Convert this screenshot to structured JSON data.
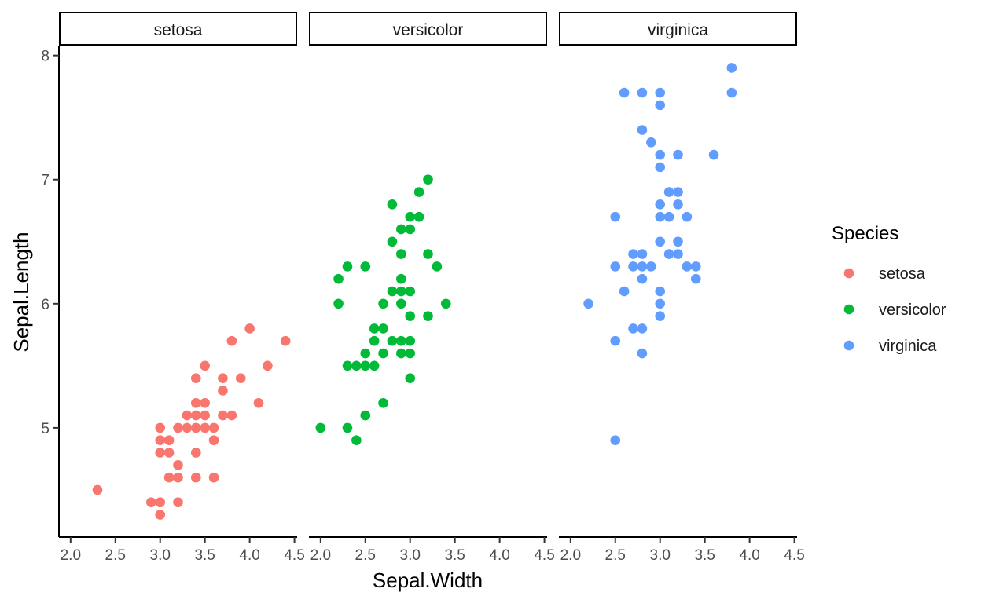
{
  "chart_data": {
    "type": "scatter",
    "facet_by": "Species",
    "facets": [
      "setosa",
      "versicolor",
      "virginica"
    ],
    "xlabel": "Sepal.Width",
    "ylabel": "Sepal.Length",
    "xlim": [
      1.87,
      4.53
    ],
    "ylim": [
      4.12,
      8.08
    ],
    "x_ticks": [
      2.0,
      2.5,
      3.0,
      3.5,
      4.0,
      4.5
    ],
    "x_tick_labels": [
      "2.0",
      "2.5",
      "3.0",
      "3.5",
      "4.0",
      "4.5"
    ],
    "y_ticks": [
      5,
      6,
      7,
      8
    ],
    "y_tick_labels": [
      "5",
      "6",
      "7",
      "8"
    ],
    "grid": false,
    "legend": {
      "title": "Species",
      "position": "right",
      "entries": [
        "setosa",
        "versicolor",
        "virginica"
      ]
    },
    "colors": {
      "setosa": "#F8766D",
      "versicolor": "#00BA38",
      "virginica": "#619CFF"
    },
    "series": [
      {
        "name": "setosa",
        "points": [
          [
            2.3,
            4.5
          ],
          [
            2.9,
            4.4
          ],
          [
            3.0,
            4.4
          ],
          [
            3.0,
            4.3
          ],
          [
            3.1,
            4.6
          ],
          [
            3.2,
            4.6
          ],
          [
            3.2,
            4.4
          ],
          [
            3.4,
            4.6
          ],
          [
            3.6,
            4.6
          ],
          [
            3.2,
            4.7
          ],
          [
            3.0,
            4.8
          ],
          [
            3.1,
            4.8
          ],
          [
            3.4,
            4.8
          ],
          [
            3.0,
            4.9
          ],
          [
            3.1,
            4.9
          ],
          [
            3.6,
            4.9
          ],
          [
            3.0,
            5.0
          ],
          [
            3.2,
            5.0
          ],
          [
            3.3,
            5.0
          ],
          [
            3.4,
            5.0
          ],
          [
            3.5,
            5.0
          ],
          [
            3.6,
            5.0
          ],
          [
            3.3,
            5.1
          ],
          [
            3.4,
            5.1
          ],
          [
            3.5,
            5.1
          ],
          [
            3.7,
            5.1
          ],
          [
            3.8,
            5.1
          ],
          [
            3.4,
            5.2
          ],
          [
            3.5,
            5.2
          ],
          [
            4.1,
            5.2
          ],
          [
            3.7,
            5.3
          ],
          [
            3.4,
            5.4
          ],
          [
            3.7,
            5.4
          ],
          [
            3.9,
            5.4
          ],
          [
            3.5,
            5.5
          ],
          [
            4.2,
            5.5
          ],
          [
            3.8,
            5.7
          ],
          [
            4.4,
            5.7
          ],
          [
            4.0,
            5.8
          ]
        ]
      },
      {
        "name": "versicolor",
        "points": [
          [
            2.0,
            5.0
          ],
          [
            2.3,
            5.0
          ],
          [
            2.4,
            4.9
          ],
          [
            2.5,
            5.1
          ],
          [
            2.7,
            5.2
          ],
          [
            2.3,
            5.5
          ],
          [
            2.4,
            5.5
          ],
          [
            2.5,
            5.5
          ],
          [
            2.6,
            5.5
          ],
          [
            3.0,
            5.4
          ],
          [
            2.5,
            5.6
          ],
          [
            2.7,
            5.6
          ],
          [
            2.9,
            5.6
          ],
          [
            3.0,
            5.6
          ],
          [
            2.6,
            5.7
          ],
          [
            2.8,
            5.7
          ],
          [
            2.9,
            5.7
          ],
          [
            3.0,
            5.7
          ],
          [
            2.6,
            5.8
          ],
          [
            2.7,
            5.8
          ],
          [
            3.0,
            5.9
          ],
          [
            3.2,
            5.9
          ],
          [
            2.2,
            6.0
          ],
          [
            2.7,
            6.0
          ],
          [
            2.9,
            6.0
          ],
          [
            3.4,
            6.0
          ],
          [
            2.8,
            6.1
          ],
          [
            2.9,
            6.1
          ],
          [
            3.0,
            6.1
          ],
          [
            2.2,
            6.2
          ],
          [
            2.9,
            6.2
          ],
          [
            2.3,
            6.3
          ],
          [
            2.5,
            6.3
          ],
          [
            3.3,
            6.3
          ],
          [
            2.9,
            6.4
          ],
          [
            3.2,
            6.4
          ],
          [
            2.8,
            6.5
          ],
          [
            2.9,
            6.6
          ],
          [
            3.0,
            6.6
          ],
          [
            3.0,
            6.7
          ],
          [
            3.1,
            6.7
          ],
          [
            2.8,
            6.8
          ],
          [
            3.1,
            6.9
          ],
          [
            3.2,
            7.0
          ]
        ]
      },
      {
        "name": "virginica",
        "points": [
          [
            2.5,
            4.9
          ],
          [
            2.5,
            5.7
          ],
          [
            2.7,
            5.8
          ],
          [
            2.8,
            5.8
          ],
          [
            2.8,
            5.6
          ],
          [
            3.0,
            5.9
          ],
          [
            2.2,
            6.0
          ],
          [
            3.0,
            6.0
          ],
          [
            2.6,
            6.1
          ],
          [
            3.0,
            6.1
          ],
          [
            2.8,
            6.2
          ],
          [
            3.4,
            6.2
          ],
          [
            2.5,
            6.3
          ],
          [
            2.7,
            6.3
          ],
          [
            2.8,
            6.3
          ],
          [
            2.9,
            6.3
          ],
          [
            3.3,
            6.3
          ],
          [
            3.4,
            6.3
          ],
          [
            2.7,
            6.4
          ],
          [
            2.8,
            6.4
          ],
          [
            3.1,
            6.4
          ],
          [
            3.2,
            6.4
          ],
          [
            3.0,
            6.5
          ],
          [
            3.2,
            6.5
          ],
          [
            2.5,
            6.7
          ],
          [
            3.0,
            6.7
          ],
          [
            3.1,
            6.7
          ],
          [
            3.3,
            6.7
          ],
          [
            3.0,
            6.8
          ],
          [
            3.2,
            6.8
          ],
          [
            3.1,
            6.9
          ],
          [
            3.2,
            6.9
          ],
          [
            3.0,
            7.1
          ],
          [
            3.0,
            7.2
          ],
          [
            3.2,
            7.2
          ],
          [
            3.6,
            7.2
          ],
          [
            2.9,
            7.3
          ],
          [
            2.8,
            7.4
          ],
          [
            3.0,
            7.6
          ],
          [
            2.6,
            7.7
          ],
          [
            2.8,
            7.7
          ],
          [
            3.0,
            7.7
          ],
          [
            3.8,
            7.7
          ],
          [
            3.8,
            7.9
          ]
        ]
      }
    ]
  }
}
